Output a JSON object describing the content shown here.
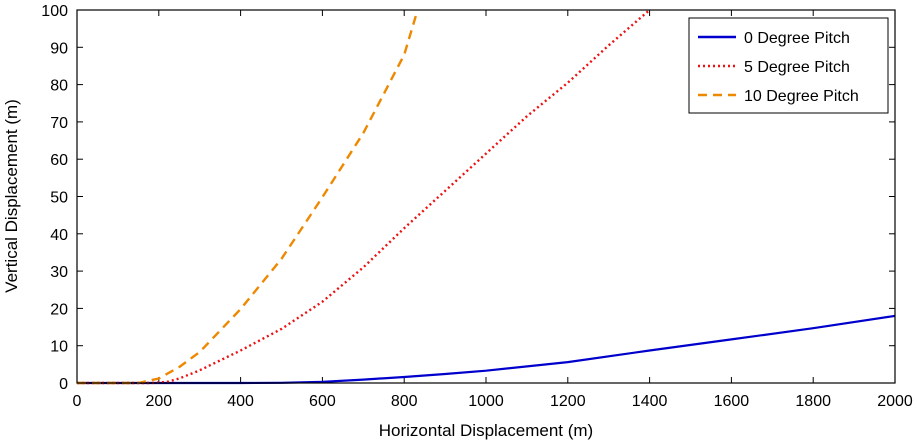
{
  "chart_data": {
    "type": "line",
    "title": "",
    "xlabel": "Horizontal Displacement (m)",
    "ylabel": "Vertical Displacement (m)",
    "xlim": [
      0,
      2000
    ],
    "ylim": [
      0,
      100
    ],
    "xticks": [
      0,
      200,
      400,
      600,
      800,
      1000,
      1200,
      1400,
      1600,
      1800,
      2000
    ],
    "yticks": [
      0,
      10,
      20,
      30,
      40,
      50,
      60,
      70,
      80,
      90,
      100
    ],
    "xtick_labels": [
      "0",
      "200",
      "400",
      "600",
      "800",
      "1000",
      "1200",
      "1400",
      "1600",
      "1800",
      "2000"
    ],
    "ytick_labels": [
      "0",
      "10",
      "20",
      "30",
      "40",
      "50",
      "60",
      "70",
      "80",
      "90",
      "100"
    ],
    "grid": false,
    "legend_position": "top-right",
    "series": [
      {
        "name": "0 Degree Pitch",
        "color": "#0000cc",
        "line_style": "solid",
        "x": [
          0,
          200,
          400,
          500,
          600,
          700,
          800,
          900,
          1000,
          1200,
          1400,
          1600,
          1800,
          2000
        ],
        "y": [
          0,
          0,
          0,
          0.05,
          0.3,
          0.9,
          1.6,
          2.4,
          3.3,
          5.6,
          8.7,
          11.7,
          14.7,
          18
        ]
      },
      {
        "name": "5 Degree Pitch",
        "color": "#ee1111",
        "line_style": "dotted",
        "x": [
          0,
          180,
          220,
          250,
          300,
          400,
          500,
          600,
          700,
          800,
          900,
          1000,
          1100,
          1200,
          1300,
          1400
        ],
        "y": [
          0,
          0,
          0.3,
          1.2,
          3.4,
          8.7,
          14.5,
          21.8,
          31,
          41.5,
          51.5,
          61.5,
          71.5,
          80.5,
          90.5,
          100
        ]
      },
      {
        "name": "10 Degree Pitch",
        "color": "#ee8800",
        "line_style": "dashed",
        "x": [
          0,
          150,
          200,
          250,
          300,
          400,
          500,
          600,
          700,
          800,
          830
        ],
        "y": [
          0,
          0,
          1.2,
          4.3,
          8.3,
          19.8,
          33.3,
          49.8,
          67,
          88,
          99
        ]
      }
    ]
  }
}
